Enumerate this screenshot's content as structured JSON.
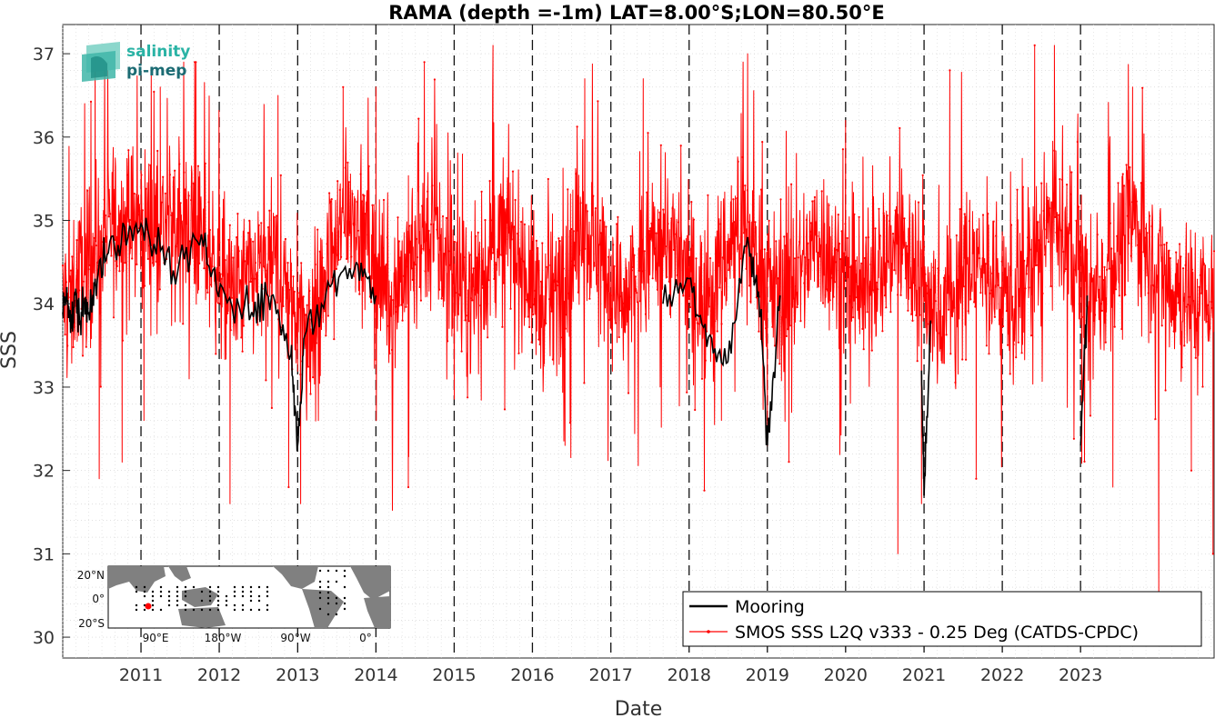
{
  "chart_data": {
    "type": "line",
    "title": "RAMA (depth =-1m) LAT=8.00°S;LON=80.50°E",
    "xlabel": "Date",
    "ylabel": "SSS",
    "x_range": [
      "2010-01-01",
      "2024-09-15"
    ],
    "ylim": [
      29.75,
      37.35
    ],
    "y_ticks": [
      30,
      31,
      32,
      33,
      34,
      35,
      36,
      37
    ],
    "x_ticks": [
      "2011",
      "2012",
      "2013",
      "2014",
      "2015",
      "2016",
      "2017",
      "2018",
      "2019",
      "2020",
      "2021",
      "2022",
      "2023"
    ],
    "grid": true,
    "year_separators": "dashed",
    "legend_position": "bottom-right",
    "legend": [
      {
        "label": "Mooring",
        "color": "#000000"
      },
      {
        "label": "SMOS SSS L2Q v333 - 0.25 Deg (CATDS-CPDC)",
        "color": "#ff0000"
      }
    ],
    "series": [
      {
        "name": "Mooring",
        "color": "#000000",
        "points": [
          [
            "2010-01-01",
            33.9
          ],
          [
            "2010-01-20",
            34.2
          ],
          [
            "2010-02-10",
            33.7
          ],
          [
            "2010-03-01",
            34.1
          ],
          [
            "2010-03-20",
            33.8
          ],
          [
            "2010-04-10",
            34.0
          ],
          [
            "2010-05-01",
            33.9
          ],
          [
            "2010-06-01",
            34.3
          ],
          [
            "2010-08-01",
            34.6
          ],
          [
            "2010-11-01",
            34.8
          ],
          [
            "2011-02-01",
            34.9
          ],
          [
            "2011-06-01",
            34.4
          ],
          [
            "2011-10-01",
            34.7
          ],
          [
            "2012-01-15",
            34.2
          ],
          [
            "2012-06-01",
            33.9
          ],
          [
            "2012-09-01",
            34.1
          ],
          [
            "2012-12-01",
            33.4
          ],
          [
            "2013-01-01",
            32.3
          ],
          [
            "2013-02-01",
            33.6
          ],
          [
            "2013-06-01",
            34.2
          ],
          [
            "2013-10-01",
            34.5
          ],
          [
            "2014-01-01",
            34.1
          ],
          [
            "2017-09-01",
            34.0
          ],
          [
            "2018-01-01",
            34.3
          ],
          [
            "2018-04-01",
            33.6
          ],
          [
            "2018-07-01",
            33.3
          ],
          [
            "2018-10-01",
            34.8
          ],
          [
            "2018-12-01",
            33.9
          ],
          [
            "2019-01-01",
            32.3
          ],
          [
            "2019-03-01",
            34.1
          ],
          [
            "2020-06-01",
            34.3
          ],
          [
            "2020-12-20",
            33.2
          ],
          [
            "2021-01-01",
            31.7
          ],
          [
            "2021-02-01",
            33.8
          ],
          [
            "2023-01-01",
            32.3
          ],
          [
            "2023-02-01",
            34.1
          ]
        ]
      },
      {
        "name": "SMOS SSS L2Q v333 - 0.25 Deg (CATDS-CPDC)",
        "color": "#ff0000",
        "seasonal_mean": [
          [
            "2010-01-01",
            34.0
          ],
          [
            "2010-09-01",
            35.0
          ],
          [
            "2011-09-01",
            34.9
          ],
          [
            "2012-03-01",
            34.1
          ],
          [
            "2012-09-01",
            34.5
          ],
          [
            "2013-03-01",
            33.7
          ],
          [
            "2013-09-01",
            35.2
          ],
          [
            "2014-03-01",
            34.1
          ],
          [
            "2014-09-01",
            34.9
          ],
          [
            "2015-03-01",
            34.0
          ],
          [
            "2015-09-01",
            34.9
          ],
          [
            "2016-03-01",
            33.9
          ],
          [
            "2016-09-01",
            34.9
          ],
          [
            "2017-03-01",
            34.0
          ],
          [
            "2017-09-01",
            34.9
          ],
          [
            "2018-03-01",
            34.0
          ],
          [
            "2018-09-01",
            35.0
          ],
          [
            "2019-03-01",
            34.0
          ],
          [
            "2019-09-01",
            34.8
          ],
          [
            "2020-03-01",
            34.0
          ],
          [
            "2020-09-01",
            34.8
          ],
          [
            "2021-03-01",
            33.9
          ],
          [
            "2021-09-01",
            34.5
          ],
          [
            "2022-03-01",
            34.0
          ],
          [
            "2022-09-01",
            35.0
          ],
          [
            "2023-03-01",
            34.0
          ],
          [
            "2023-09-01",
            35.0
          ],
          [
            "2024-03-01",
            34.2
          ],
          [
            "2024-09-15",
            34.0
          ]
        ],
        "noise_amplitude": 0.75,
        "samples_per_year": 200,
        "extremes": [
          [
            "2010-06-01",
            37.0
          ],
          [
            "2010-06-20",
            31.9
          ],
          [
            "2010-10-05",
            32.1
          ],
          [
            "2011-01-15",
            32.6
          ],
          [
            "2011-04-01",
            36.6
          ],
          [
            "2012-02-20",
            31.6
          ],
          [
            "2012-10-01",
            36.5
          ],
          [
            "2012-11-20",
            31.8
          ],
          [
            "2013-01-15",
            31.6
          ],
          [
            "2013-08-01",
            36.6
          ],
          [
            "2014-01-01",
            36.6
          ],
          [
            "2014-06-01",
            31.8
          ],
          [
            "2014-08-15",
            36.9
          ],
          [
            "2015-07-01",
            37.1
          ],
          [
            "2016-06-01",
            32.3
          ],
          [
            "2016-09-01",
            36.7
          ],
          [
            "2017-06-01",
            36.7
          ],
          [
            "2018-06-01",
            32.6
          ],
          [
            "2018-10-01",
            37.0
          ],
          [
            "2019-01-01",
            32.3
          ],
          [
            "2020-01-01",
            36.2
          ],
          [
            "2020-09-01",
            31.0
          ],
          [
            "2020-12-20",
            31.6
          ],
          [
            "2021-05-01",
            36.8
          ],
          [
            "2021-09-01",
            31.9
          ],
          [
            "2022-06-01",
            37.1
          ],
          [
            "2022-09-01",
            37.1
          ],
          [
            "2023-06-01",
            31.8
          ],
          [
            "2023-09-01",
            36.6
          ],
          [
            "2024-01-01",
            30.5
          ],
          [
            "2024-06-01",
            32.0
          ],
          [
            "2024-09-10",
            31.0
          ]
        ]
      }
    ]
  },
  "logo": {
    "line1": "salinity",
    "line2": "pi-mep"
  },
  "inset_map": {
    "lat_labels": [
      "20°N",
      "0°",
      "20°S"
    ],
    "lon_labels": [
      "90°E",
      "180°W",
      "90°W",
      "0°"
    ],
    "marker_color": "#ff0000",
    "land_color": "#808080"
  }
}
